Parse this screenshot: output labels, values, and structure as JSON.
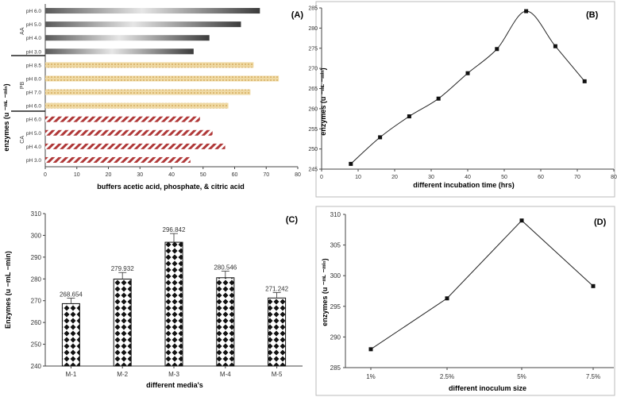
{
  "chart_data": [
    {
      "panel": "A",
      "type": "bar",
      "orientation": "horizontal",
      "title": "",
      "xlabel": "buffers acetic acid, phosphate, & citric acid",
      "ylabel": "enzymes (u ⁻ᵐᴸ ⁻ᵐⁱⁿ)",
      "xlim": [
        0,
        80
      ],
      "xticks": [
        "0",
        "10",
        "20",
        "30",
        "40",
        "50",
        "60",
        "70",
        "80"
      ],
      "groups": [
        {
          "name": "AA",
          "categories": [
            "pH 6.0",
            "pH 5.0",
            "pH 4.0",
            "pH 3.0"
          ],
          "values": [
            68,
            62,
            52,
            47
          ],
          "fill": "gradient-gray"
        },
        {
          "name": "PB",
          "categories": [
            "pH 8.5",
            "pH 8.0",
            "pH 7.0",
            "pH 6.0"
          ],
          "values": [
            66,
            74,
            65,
            58
          ],
          "fill": "tan-texture"
        },
        {
          "name": "CA",
          "categories": [
            "pH 6.0",
            "pH 5.0",
            "pH 4.0",
            "pH 3.0"
          ],
          "values": [
            49,
            53,
            57,
            46
          ],
          "fill": "red-hatch"
        }
      ]
    },
    {
      "panel": "B",
      "type": "line",
      "title": "",
      "xlabel": "different incubation time (hrs)",
      "ylabel": "enzymes (u ⁻ᵐᴸ ⁻ᵐⁱⁿ)",
      "xlim": [
        0,
        80
      ],
      "ylim": [
        245,
        285
      ],
      "xticks": [
        "0",
        "10",
        "20",
        "30",
        "40",
        "50",
        "60",
        "70",
        "80"
      ],
      "yticks": [
        "245",
        "250",
        "255",
        "260",
        "265",
        "270",
        "275",
        "280",
        "285"
      ],
      "x": [
        8,
        16,
        24,
        32,
        40,
        48,
        56,
        64,
        72
      ],
      "y": [
        246.3,
        252.9,
        258.1,
        262.5,
        268.8,
        274.8,
        284.2,
        275.5,
        266.8
      ]
    },
    {
      "panel": "C",
      "type": "bar",
      "title": "",
      "xlabel": "different media's",
      "ylabel": "Enzymes  (u −mL −min)",
      "ylim": [
        240,
        310
      ],
      "yticks": [
        "240",
        "250",
        "260",
        "270",
        "280",
        "290",
        "300",
        "310"
      ],
      "categories": [
        "M-1",
        "M-2",
        "M-3",
        "M-4",
        "M-5"
      ],
      "values": [
        268.654,
        279.932,
        296.842,
        280.546,
        271.242
      ],
      "data_labels": [
        "268.654",
        "279.932",
        "296.842",
        "280.546",
        "271.242"
      ],
      "errors": [
        2.5,
        3,
        4,
        3,
        2.5
      ]
    },
    {
      "panel": "D",
      "type": "line",
      "title": "",
      "xlabel": "different inoculum size",
      "ylabel": "enzymes (u ⁻ᵐᴸ ⁻ᵐⁱⁿ)",
      "ylim": [
        285,
        310
      ],
      "yticks": [
        "285",
        "290",
        "295",
        "300",
        "305",
        "310"
      ],
      "categories": [
        "1%",
        "2.5%",
        "5%",
        "7.5%"
      ],
      "values": [
        288,
        296.3,
        309,
        298.3
      ]
    }
  ],
  "panel_labels": {
    "a": "(A)",
    "b": "(B)",
    "c": "(C)",
    "d": "(D)"
  },
  "colors": {
    "axis": "#444444",
    "gray_dark": "#5a5a5a",
    "gray_light": "#dcdcdc",
    "tan": "#e8cc8c",
    "red": "#b03838",
    "line": "#222222"
  }
}
